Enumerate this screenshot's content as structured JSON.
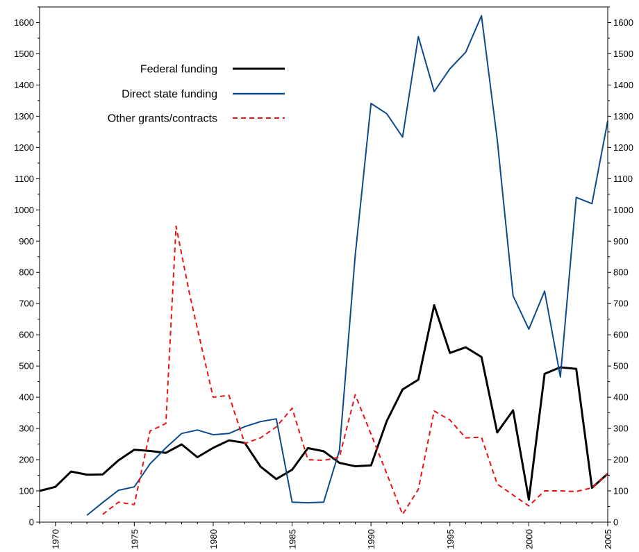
{
  "chart_data": {
    "type": "line",
    "title": "",
    "xlabel": "",
    "ylabel": "",
    "xlim": [
      1969,
      2005
    ],
    "ylim": [
      0,
      1650
    ],
    "x_ticks": [
      1970,
      1975,
      1980,
      1985,
      1990,
      1995,
      2000,
      2005
    ],
    "x_tick_labels": [
      "1970",
      "1975",
      "1980",
      "1985",
      "1990",
      "1995",
      "2000",
      "2005"
    ],
    "y_ticks": [
      0,
      100,
      200,
      300,
      400,
      500,
      600,
      700,
      800,
      900,
      1000,
      1100,
      1200,
      1300,
      1400,
      1500,
      1600
    ],
    "y_tick_labels": [
      "0",
      "100",
      "200",
      "300",
      "400",
      "500",
      "600",
      "700",
      "800",
      "900",
      "1000",
      "1100",
      "1200",
      "1300",
      "1400",
      "1500",
      "1600"
    ],
    "grid": false,
    "y_axis_both_sides": true,
    "legend_position": "upper-left",
    "series": [
      {
        "name": "Federal funding",
        "color": "#000000",
        "style": "solid",
        "points": [
          [
            1969,
            100
          ],
          [
            1970,
            113
          ],
          [
            1971,
            162
          ],
          [
            1972,
            152
          ],
          [
            1973,
            153
          ],
          [
            1974,
            198
          ],
          [
            1975,
            232
          ],
          [
            1976,
            228
          ],
          [
            1977,
            222
          ],
          [
            1978,
            249
          ],
          [
            1979,
            208
          ],
          [
            1980,
            238
          ],
          [
            1981,
            262
          ],
          [
            1982,
            254
          ],
          [
            1983,
            178
          ],
          [
            1984,
            138
          ],
          [
            1985,
            168
          ],
          [
            1986,
            237
          ],
          [
            1987,
            227
          ],
          [
            1988,
            190
          ],
          [
            1989,
            179
          ],
          [
            1990,
            182
          ],
          [
            1991,
            324
          ],
          [
            1992,
            425
          ],
          [
            1993,
            456
          ],
          [
            1994,
            695
          ],
          [
            1995,
            542
          ],
          [
            1996,
            560
          ],
          [
            1997,
            529
          ],
          [
            1998,
            287
          ],
          [
            1999,
            358
          ],
          [
            2000,
            72
          ],
          [
            2001,
            475
          ],
          [
            2002,
            496
          ],
          [
            2003,
            491
          ],
          [
            2004,
            110
          ],
          [
            2005,
            155
          ]
        ]
      },
      {
        "name": "Direct state funding",
        "color": "#0b4a8c",
        "style": "solid",
        "points": [
          [
            1972,
            22
          ],
          [
            1973,
            63
          ],
          [
            1974,
            102
          ],
          [
            1975,
            113
          ],
          [
            1976,
            187
          ],
          [
            1977,
            238
          ],
          [
            1978,
            284
          ],
          [
            1979,
            295
          ],
          [
            1980,
            280
          ],
          [
            1981,
            284
          ],
          [
            1982,
            306
          ],
          [
            1983,
            322
          ],
          [
            1984,
            331
          ],
          [
            1985,
            64
          ],
          [
            1986,
            62
          ],
          [
            1987,
            64
          ],
          [
            1988,
            230
          ],
          [
            1989,
            854
          ],
          [
            1990,
            1341
          ],
          [
            1991,
            1308
          ],
          [
            1992,
            1233
          ],
          [
            1993,
            1555
          ],
          [
            1994,
            1379
          ],
          [
            1995,
            1452
          ],
          [
            1996,
            1505
          ],
          [
            1997,
            1622
          ],
          [
            1998,
            1225
          ],
          [
            1999,
            725
          ],
          [
            2000,
            618
          ],
          [
            2001,
            740
          ],
          [
            2002,
            465
          ],
          [
            2003,
            1040
          ],
          [
            2004,
            1020
          ],
          [
            2005,
            1285
          ]
        ]
      },
      {
        "name": "Other grants/contracts",
        "color": "#ee1111",
        "style": "dashed",
        "points": [
          [
            1973,
            25
          ],
          [
            1974,
            64
          ],
          [
            1975,
            56
          ],
          [
            1976,
            292
          ],
          [
            1977,
            316
          ],
          [
            1977.65,
            948
          ],
          [
            1978.5,
            731
          ],
          [
            1979.2,
            575
          ],
          [
            1980,
            400
          ],
          [
            1981,
            406
          ],
          [
            1982,
            252
          ],
          [
            1983,
            270
          ],
          [
            1984,
            305
          ],
          [
            1985,
            365
          ],
          [
            1986,
            200
          ],
          [
            1987,
            198
          ],
          [
            1988,
            208
          ],
          [
            1989,
            408
          ],
          [
            1990,
            282
          ],
          [
            1991,
            155
          ],
          [
            1992,
            25
          ],
          [
            1993,
            105
          ],
          [
            1994,
            356
          ],
          [
            1995,
            327
          ],
          [
            1996,
            270
          ],
          [
            1997,
            272
          ],
          [
            1998,
            122
          ],
          [
            1999,
            87
          ],
          [
            2000,
            52
          ],
          [
            2001,
            100
          ],
          [
            2002,
            100
          ],
          [
            2003,
            98
          ],
          [
            2004,
            110
          ],
          [
            2005,
            155
          ]
        ]
      }
    ]
  }
}
